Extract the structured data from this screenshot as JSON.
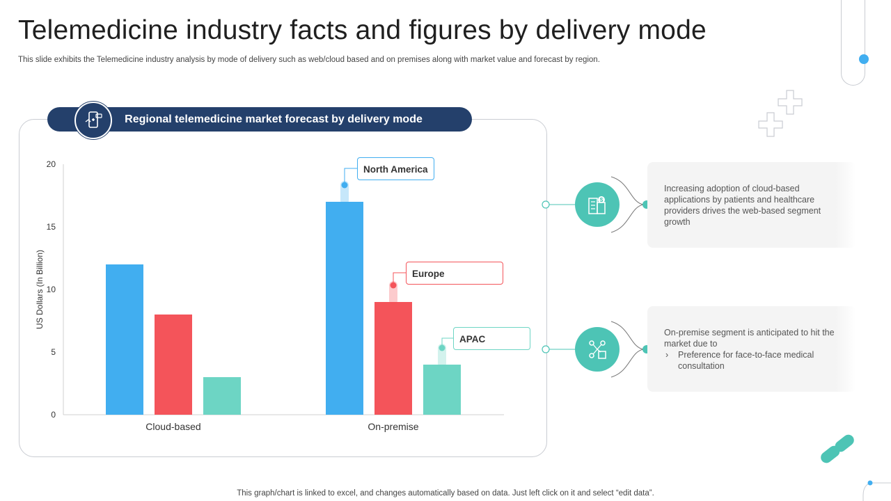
{
  "page": {
    "title": "Telemedicine industry facts and figures by delivery mode",
    "subtitle": "This slide exhibits the Telemedicine industry analysis by mode of delivery such as web/cloud based and on premises along with market value and forecast by region.",
    "footer": "This graph/chart is linked to excel, and changes automatically based on data. Just left click on it and select “edit data”."
  },
  "chart_header": {
    "label": "Regional telemedicine market forecast by delivery mode",
    "icon": "mobile-health-icon"
  },
  "chart_data": {
    "type": "bar",
    "title": "Regional telemedicine market forecast by delivery mode",
    "xlabel": "",
    "ylabel": "US Dollars (In Billion)",
    "ylim": [
      0,
      20
    ],
    "yticks": [
      0,
      5,
      10,
      15,
      20
    ],
    "categories": [
      "Cloud-based",
      "On-premise"
    ],
    "series": [
      {
        "name": "North America",
        "color": "#41aef0",
        "values": [
          12,
          17
        ]
      },
      {
        "name": "Europe",
        "color": "#f4545a",
        "values": [
          8,
          9
        ]
      },
      {
        "name": "APAC",
        "color": "#6dd5c4",
        "values": [
          3,
          4
        ]
      }
    ],
    "grid": false,
    "legend": "callouts on On-premise bars"
  },
  "info_cards": [
    {
      "icon": "buildings-dollar-icon",
      "text": "Increasing adoption of cloud-based applications by patients and healthcare providers drives the web-based segment growth"
    },
    {
      "icon": "network-people-icon",
      "text": "On-premise segment is anticipated to hit the market due to",
      "bullet": "Preference for face-to-face medical consultation"
    }
  ],
  "colors": {
    "navy": "#24406b",
    "teal": "#4dc4b5",
    "blue": "#41aef0",
    "red": "#f4545a",
    "mint": "#6dd5c4"
  }
}
